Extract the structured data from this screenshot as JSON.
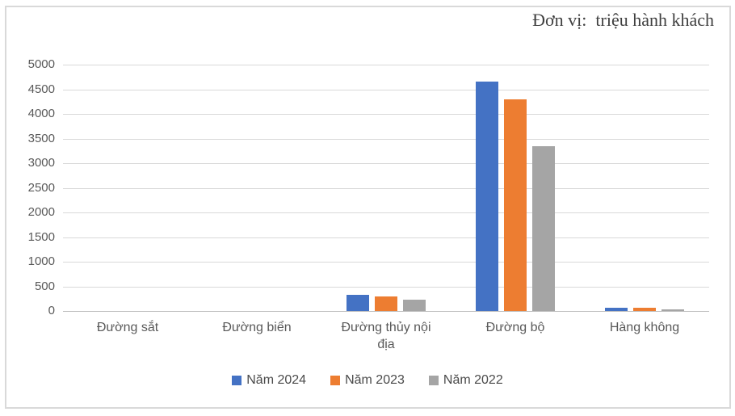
{
  "chart_data": {
    "type": "bar",
    "title": "Đơn vị:  triệu hành khách",
    "categories": [
      "Đường sắt",
      "Đường biển",
      "Đường thủy nội địa",
      "Đường bộ",
      "Hàng không"
    ],
    "series": [
      {
        "name": "Năm 2024",
        "color": "#4472C4",
        "values": [
          0,
          0,
          330,
          4650,
          65
        ]
      },
      {
        "name": "Năm 2023",
        "color": "#ED7D31",
        "values": [
          0,
          0,
          300,
          4300,
          60
        ]
      },
      {
        "name": "Năm 2022",
        "color": "#A5A5A5",
        "values": [
          0,
          0,
          230,
          3350,
          40
        ]
      }
    ],
    "xlabel": "",
    "ylabel": "",
    "ylim": [
      0,
      5000
    ],
    "ytick_step": 500,
    "yticks": [
      0,
      500,
      1000,
      1500,
      2000,
      2500,
      3000,
      3500,
      4000,
      4500,
      5000
    ],
    "grid": true,
    "legend_position": "bottom"
  },
  "colors": {
    "gridline": "#d9d9d9",
    "axis_line": "#bfbfbf",
    "tick_text": "#595959",
    "title_text": "#3f3f3f",
    "border": "#d9d9d9",
    "background": "#ffffff"
  }
}
